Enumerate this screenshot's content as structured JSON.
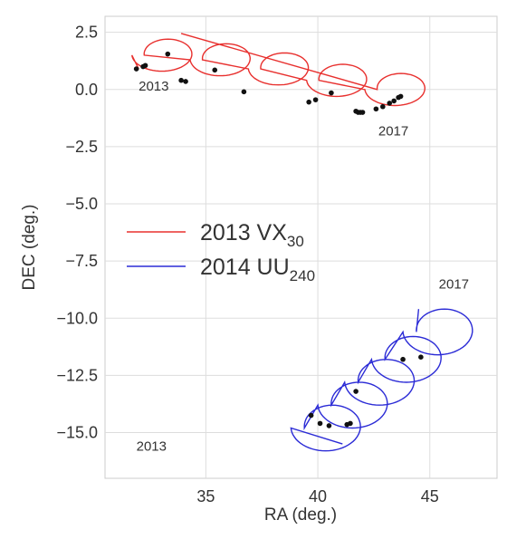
{
  "chart_data": {
    "type": "line",
    "xlabel": "RA (deg.)",
    "ylabel": "DEC (deg.)",
    "xlim": [
      30.5,
      48
    ],
    "ylim": [
      -17.0,
      3.2
    ],
    "xticks": [
      35,
      40,
      45
    ],
    "xtick_labels": [
      "35",
      "40",
      "45"
    ],
    "yticks": [
      2.5,
      0.0,
      -2.5,
      -5.0,
      -7.5,
      -10.0,
      -12.5,
      -15.0
    ],
    "ytick_labels": [
      "2.5",
      "0.0",
      "−2.5",
      "−5.0",
      "−7.5",
      "−10.0",
      "−12.5",
      "−15.0"
    ],
    "grid": true,
    "legend_position": "center-left",
    "legend": [
      {
        "name": "2013 VX",
        "sub": "30",
        "color": "#e8302e"
      },
      {
        "name": "2014 UU",
        "sub": "240",
        "color": "#2b2bd6"
      }
    ],
    "annotations": [
      {
        "text": "2013",
        "x": 32.0,
        "y": -0.05
      },
      {
        "text": "2017",
        "x": 42.7,
        "y": -2.0
      },
      {
        "text": "2017",
        "x": 45.4,
        "y": -8.7
      },
      {
        "text": "2013",
        "x": 31.9,
        "y": -15.8
      }
    ],
    "series": [
      {
        "name": "2013 VX30",
        "color": "#e8302e",
        "loops": [
          {
            "cx": 32.9,
            "cy": 1.5,
            "rx": 1.2,
            "ry": 0.7,
            "dx": 0.55
          },
          {
            "cx": 35.5,
            "cy": 1.3,
            "rx": 1.2,
            "ry": 0.7,
            "dx": 0.55
          },
          {
            "cx": 38.1,
            "cy": 0.9,
            "rx": 1.2,
            "ry": 0.7,
            "dx": 0.55
          },
          {
            "cx": 40.7,
            "cy": 0.4,
            "rx": 1.2,
            "ry": 0.7,
            "dx": 0.55
          },
          {
            "cx": 43.3,
            "cy": 0.0,
            "rx": 1.2,
            "ry": 0.7,
            "dx": 0.55
          }
        ],
        "start": [
          32.0,
          0.9
        ],
        "end": [
          33.9,
          2.45
        ],
        "points": [
          {
            "x": 31.9,
            "y": 0.9
          },
          {
            "x": 32.2,
            "y": 1.0
          },
          {
            "x": 32.3,
            "y": 1.05
          },
          {
            "x": 33.3,
            "y": 1.55
          },
          {
            "x": 33.9,
            "y": 0.4
          },
          {
            "x": 34.1,
            "y": 0.35
          },
          {
            "x": 35.4,
            "y": 0.85
          },
          {
            "x": 36.7,
            "y": -0.1
          },
          {
            "x": 39.6,
            "y": -0.55
          },
          {
            "x": 39.9,
            "y": -0.45
          },
          {
            "x": 40.6,
            "y": -0.15
          },
          {
            "x": 41.7,
            "y": -0.95
          },
          {
            "x": 41.8,
            "y": -1.0
          },
          {
            "x": 41.9,
            "y": -1.0
          },
          {
            "x": 42.0,
            "y": -1.0
          },
          {
            "x": 42.6,
            "y": -0.85
          },
          {
            "x": 42.9,
            "y": -0.75
          },
          {
            "x": 43.2,
            "y": -0.6
          },
          {
            "x": 43.4,
            "y": -0.5
          },
          {
            "x": 43.6,
            "y": -0.35
          },
          {
            "x": 43.7,
            "y": -0.3
          }
        ]
      },
      {
        "name": "2014 UU240",
        "color": "#2b2bd6",
        "loops": [
          {
            "cx": 40.2,
            "cy": -14.8,
            "rx": 1.4,
            "ry": 1.0,
            "dx": 0.6
          },
          {
            "cx": 41.4,
            "cy": -13.8,
            "rx": 1.4,
            "ry": 1.0,
            "dx": 0.6
          },
          {
            "cx": 42.6,
            "cy": -12.8,
            "rx": 1.4,
            "ry": 1.0,
            "dx": 0.6
          },
          {
            "cx": 43.8,
            "cy": -11.8,
            "rx": 1.4,
            "ry": 1.0,
            "dx": 0.6
          },
          {
            "cx": 45.2,
            "cy": -10.6,
            "rx": 1.4,
            "ry": 1.0,
            "dx": 0.6
          }
        ],
        "start": [
          41.1,
          -15.5
        ],
        "end": [
          44.5,
          -9.6
        ],
        "points": [
          {
            "x": 39.7,
            "y": -14.25
          },
          {
            "x": 40.1,
            "y": -14.6
          },
          {
            "x": 40.5,
            "y": -14.7
          },
          {
            "x": 41.3,
            "y": -14.65
          },
          {
            "x": 41.45,
            "y": -14.6
          },
          {
            "x": 41.7,
            "y": -13.2
          },
          {
            "x": 43.8,
            "y": -11.8
          },
          {
            "x": 44.6,
            "y": -11.7
          }
        ]
      }
    ]
  }
}
